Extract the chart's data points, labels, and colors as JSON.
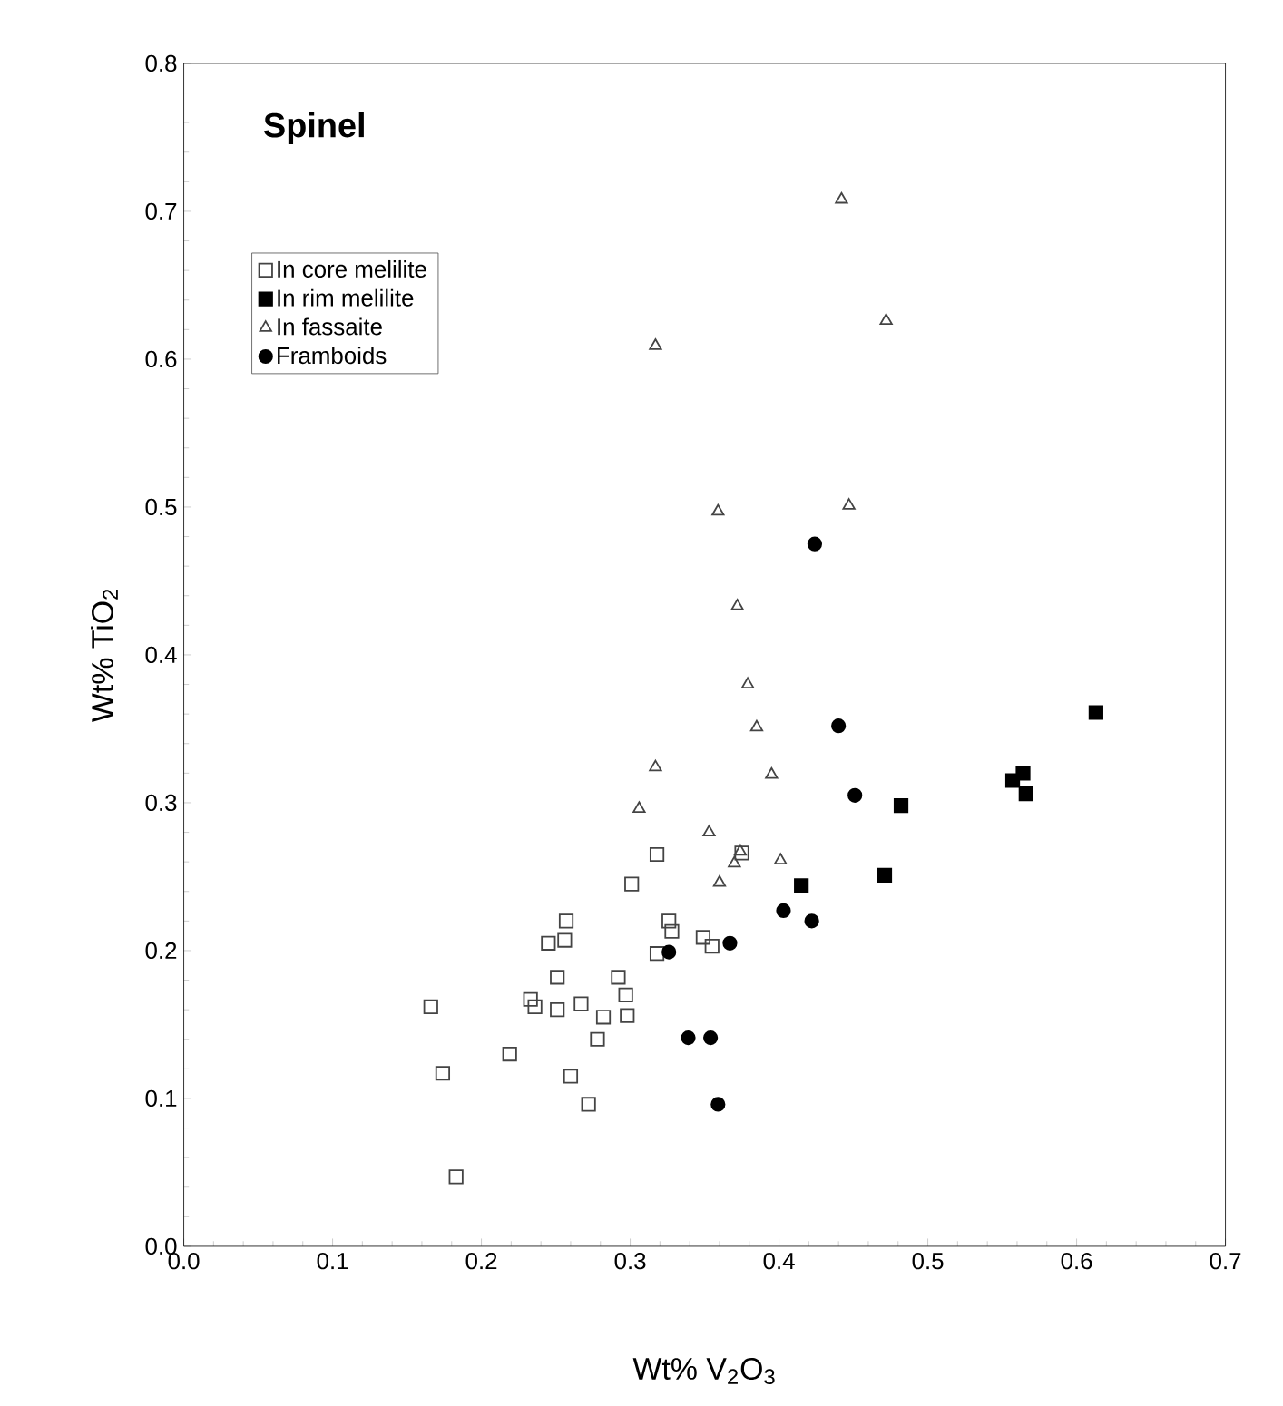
{
  "chart_data": {
    "type": "scatter",
    "title": "Spinel",
    "xlabel": "Wt%  V$_{2}$O$_{3}$",
    "ylabel": "Wt%  TiO$_{2}$",
    "xlim": [
      0,
      0.7
    ],
    "ylim": [
      0,
      0.8
    ],
    "xticks": [
      {
        "value": 0,
        "label": "0.0"
      },
      {
        "value": 0.1,
        "label": "0.1"
      },
      {
        "value": 0.2,
        "label": "0.2"
      },
      {
        "value": 0.3,
        "label": "0.3"
      },
      {
        "value": 0.4,
        "label": "0.4"
      },
      {
        "value": 0.5,
        "label": "0.5"
      },
      {
        "value": 0.6,
        "label": "0.6"
      },
      {
        "value": 0.7,
        "label": "0.7"
      }
    ],
    "yticks": [
      {
        "value": 0,
        "label": "0.0"
      },
      {
        "value": 0.1,
        "label": "0.1"
      },
      {
        "value": 0.2,
        "label": "0.2"
      },
      {
        "value": 0.3,
        "label": "0.3"
      },
      {
        "value": 0.4,
        "label": "0.4"
      },
      {
        "value": 0.5,
        "label": "0.5"
      },
      {
        "value": 0.6,
        "label": "0.6"
      },
      {
        "value": 0.7,
        "label": "0.7"
      },
      {
        "value": 0.8,
        "label": "0.8"
      }
    ],
    "legend": "top left",
    "grid": false,
    "series": [
      {
        "name": "In core melilite",
        "color": "#444444",
        "marker": "square",
        "x": [
          0.166,
          0.174,
          0.183,
          0.219,
          0.233,
          0.236,
          0.245,
          0.251,
          0.251,
          0.257,
          0.256,
          0.26,
          0.267,
          0.272,
          0.278,
          0.282,
          0.292,
          0.297,
          0.298,
          0.301,
          0.318,
          0.318,
          0.326,
          0.328,
          0.349,
          0.355,
          0.375
        ],
        "values": [
          0.162,
          0.117,
          0.047,
          0.13,
          0.167,
          0.162,
          0.205,
          0.182,
          0.16,
          0.22,
          0.207,
          0.115,
          0.164,
          0.096,
          0.14,
          0.155,
          0.182,
          0.17,
          0.156,
          0.245,
          0.265,
          0.198,
          0.22,
          0.213,
          0.209,
          0.203,
          0.266
        ]
      },
      {
        "name": "In rim melilite",
        "color": "#000000",
        "marker": "square",
        "x": [
          0.613,
          0.557,
          0.564,
          0.566,
          0.482,
          0.415,
          0.471
        ],
        "values": [
          0.361,
          0.315,
          0.32,
          0.306,
          0.298,
          0.244,
          0.251
        ]
      },
      {
        "name": "In fassaite",
        "color": "#444444",
        "marker": "triangle",
        "x": [
          0.442,
          0.472,
          0.317,
          0.359,
          0.447,
          0.372,
          0.379,
          0.385,
          0.317,
          0.395,
          0.306,
          0.353,
          0.401,
          0.37,
          0.374,
          0.36
        ],
        "values": [
          0.708,
          0.626,
          0.609,
          0.497,
          0.501,
          0.433,
          0.38,
          0.351,
          0.324,
          0.319,
          0.296,
          0.28,
          0.261,
          0.259,
          0.267,
          0.246
        ]
      },
      {
        "name": "Framboids",
        "color": "#000000",
        "marker": "circle",
        "x": [
          0.424,
          0.44,
          0.451,
          0.403,
          0.422,
          0.367,
          0.326,
          0.339,
          0.354,
          0.359
        ],
        "values": [
          0.475,
          0.352,
          0.305,
          0.227,
          0.22,
          0.205,
          0.199,
          0.141,
          0.141,
          0.096
        ]
      }
    ]
  }
}
